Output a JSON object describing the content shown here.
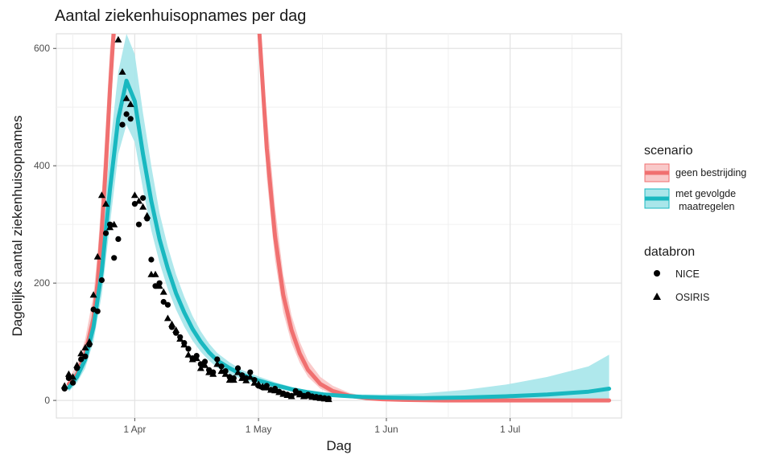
{
  "chart_data": {
    "type": "line",
    "title": "Aantal ziekenhuisopnames per dag",
    "xlabel": "Dag",
    "ylabel": "Dagelijks aantal ziekenhuisopnames",
    "xlim": [
      -19,
      118
    ],
    "ylim": [
      -30,
      625
    ],
    "x_ticks": [
      {
        "value": 0,
        "label": "1 Apr"
      },
      {
        "value": 30,
        "label": "1 May"
      },
      {
        "value": 61,
        "label": "1 Jun"
      },
      {
        "value": 91,
        "label": "1 Jul"
      }
    ],
    "y_ticks": [
      {
        "value": 0,
        "label": "0"
      },
      {
        "value": 200,
        "label": "200"
      },
      {
        "value": 400,
        "label": "400"
      },
      {
        "value": 600,
        "label": "600"
      }
    ],
    "grid": true,
    "legend_position": "right",
    "scenario_legend_title": "scenario",
    "databron_legend_title": "databron",
    "colors": {
      "geen": "#f07070",
      "met": "#19b8c0",
      "points": "#000000"
    },
    "series": [
      {
        "name": "geen bestrijding",
        "x": [
          -16,
          -14,
          -12,
          -10,
          -9,
          -8,
          -7,
          -6,
          -5,
          -4,
          30,
          32,
          34,
          36,
          38,
          40,
          42,
          45,
          48,
          52,
          56,
          60,
          65,
          75,
          85,
          95,
          105,
          115
        ],
        "y": [
          28,
          45,
          80,
          140,
          200,
          290,
          400,
          530,
          640,
          650,
          650,
          430,
          280,
          180,
          120,
          80,
          52,
          28,
          16,
          8,
          4,
          2,
          1,
          0,
          0,
          0,
          0,
          0
        ],
        "lower": [
          20,
          32,
          60,
          110,
          160,
          240,
          340,
          460,
          600,
          650,
          650,
          380,
          240,
          150,
          98,
          64,
          40,
          20,
          10,
          4,
          2,
          1,
          0,
          0,
          0,
          0,
          0,
          0
        ],
        "upper": [
          38,
          60,
          105,
          180,
          250,
          350,
          470,
          600,
          650,
          650,
          650,
          490,
          330,
          215,
          145,
          100,
          68,
          40,
          25,
          13,
          7,
          3,
          2,
          0,
          0,
          0,
          0,
          0
        ]
      },
      {
        "name": "met gevolgde maatregelen",
        "x": [
          -16,
          -14,
          -12,
          -10,
          -8,
          -6,
          -4,
          -2,
          0,
          2,
          4,
          6,
          8,
          10,
          12,
          14,
          16,
          18,
          20,
          23,
          26,
          30,
          34,
          38,
          42,
          46,
          50,
          55,
          60,
          70,
          80,
          90,
          100,
          110,
          115
        ],
        "y": [
          22,
          40,
          70,
          125,
          220,
          360,
          480,
          545,
          510,
          420,
          340,
          275,
          225,
          183,
          150,
          122,
          100,
          82,
          68,
          55,
          44,
          34,
          26,
          19,
          14,
          10,
          8,
          6,
          5,
          4,
          5,
          7,
          10,
          15,
          20
        ],
        "lower": [
          15,
          30,
          55,
          100,
          180,
          300,
          420,
          470,
          440,
          360,
          290,
          235,
          190,
          155,
          126,
          102,
          83,
          68,
          56,
          45,
          36,
          28,
          21,
          15,
          11,
          8,
          6,
          4,
          3,
          2,
          1,
          0,
          0,
          0,
          0
        ],
        "upper": [
          32,
          55,
          92,
          160,
          270,
          430,
          560,
          625,
          590,
          490,
          400,
          320,
          262,
          215,
          177,
          144,
          118,
          97,
          81,
          65,
          52,
          41,
          31,
          23,
          17,
          13,
          11,
          10,
          10,
          12,
          18,
          27,
          40,
          58,
          78
        ]
      }
    ],
    "points": [
      {
        "name": "NICE",
        "x": [
          -17,
          -16,
          -15,
          -14,
          -13,
          -12,
          -11,
          -10,
          -9,
          -8,
          -7,
          -6,
          -5,
          -4,
          -3,
          -2,
          -1,
          0,
          1,
          2,
          3,
          4,
          5,
          6,
          7,
          8,
          9,
          10,
          11,
          12,
          13,
          14,
          15,
          16,
          17,
          18,
          19,
          20,
          21,
          22,
          23,
          24,
          25,
          26,
          27,
          28,
          29,
          30,
          31,
          32,
          33,
          34,
          35,
          36,
          37,
          38,
          39,
          40,
          41,
          42,
          43,
          44,
          45,
          46,
          47
        ],
        "y": [
          20,
          38,
          30,
          55,
          70,
          75,
          95,
          155,
          152,
          205,
          285,
          300,
          243,
          275,
          470,
          488,
          480,
          335,
          300,
          345,
          310,
          240,
          195,
          200,
          168,
          163,
          125,
          115,
          108,
          98,
          88,
          72,
          76,
          62,
          66,
          52,
          48,
          70,
          58,
          50,
          40,
          38,
          55,
          43,
          38,
          48,
          35,
          25,
          22,
          25,
          18,
          20,
          15,
          12,
          10,
          8,
          16,
          12,
          8,
          10,
          7,
          6,
          5,
          4,
          3
        ],
        "marker": "circle"
      },
      {
        "name": "OSIRIS",
        "x": [
          -17,
          -16,
          -15,
          -14,
          -13,
          -12,
          -11,
          -10,
          -9,
          -8,
          -7,
          -6,
          -5,
          -4,
          -3,
          -2,
          -1,
          0,
          1,
          2,
          3,
          4,
          5,
          6,
          7,
          8,
          9,
          10,
          11,
          12,
          13,
          14,
          15,
          16,
          17,
          18,
          19,
          20,
          21,
          22,
          23,
          24,
          25,
          26,
          27,
          28,
          29,
          30,
          31,
          32,
          33,
          34,
          35,
          36,
          37,
          38,
          39,
          40,
          41,
          42,
          43,
          44,
          45,
          46,
          47
        ],
        "y": [
          25,
          45,
          40,
          60,
          80,
          90,
          100,
          180,
          245,
          350,
          335,
          295,
          300,
          615,
          560,
          515,
          505,
          350,
          340,
          330,
          315,
          215,
          215,
          195,
          185,
          140,
          130,
          120,
          105,
          95,
          78,
          70,
          72,
          55,
          60,
          48,
          45,
          62,
          50,
          45,
          35,
          35,
          48,
          38,
          34,
          40,
          30,
          28,
          24,
          22,
          18,
          17,
          14,
          11,
          9,
          7,
          13,
          10,
          7,
          8,
          6,
          5,
          4,
          3,
          2
        ],
        "marker": "triangle"
      }
    ]
  }
}
